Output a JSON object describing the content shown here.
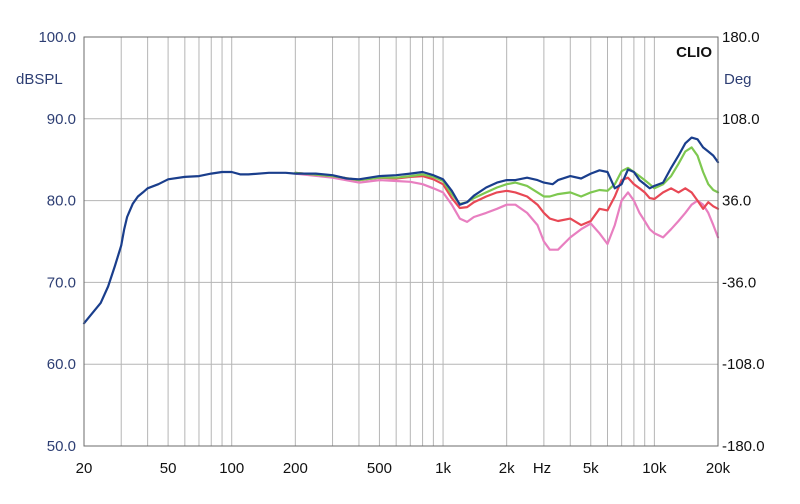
{
  "chart_data": {
    "type": "line",
    "title": "",
    "watermark": "CLIO",
    "x_scale": "log",
    "xlim": [
      20,
      20000
    ],
    "x_ticks": [
      {
        "value": 20,
        "label": "20"
      },
      {
        "value": 50,
        "label": "50"
      },
      {
        "value": 100,
        "label": "100"
      },
      {
        "value": 200,
        "label": "200"
      },
      {
        "value": 500,
        "label": "500"
      },
      {
        "value": 1000,
        "label": "1k"
      },
      {
        "value": 2000,
        "label": "2k"
      },
      {
        "value": 5000,
        "label": "5k"
      },
      {
        "value": 10000,
        "label": "10k"
      },
      {
        "value": 20000,
        "label": "20k"
      }
    ],
    "x_unit_label": "Hz",
    "y_left": {
      "label": "dBSPL",
      "lim": [
        50,
        100
      ],
      "ticks": [
        {
          "value": 100,
          "label": "100.0"
        },
        {
          "value": 90,
          "label": "90.0"
        },
        {
          "value": 80,
          "label": "80.0"
        },
        {
          "value": 70,
          "label": "70.0"
        },
        {
          "value": 60,
          "label": "60.0"
        },
        {
          "value": 50,
          "label": "50.0"
        }
      ]
    },
    "y_right": {
      "label": "Deg",
      "lim": [
        -180,
        180
      ],
      "ticks": [
        {
          "value": 180,
          "label": "180.0"
        },
        {
          "value": 108,
          "label": "108.0"
        },
        {
          "value": 36,
          "label": "36.0"
        },
        {
          "value": -36,
          "label": "-36.0"
        },
        {
          "value": -108,
          "label": "-108.0"
        },
        {
          "value": -180,
          "label": "-180.0"
        }
      ]
    },
    "grid": true,
    "series": [
      {
        "color": "#e87fc0",
        "points": [
          [
            200,
            83.3
          ],
          [
            300,
            82.8
          ],
          [
            400,
            82.2
          ],
          [
            500,
            82.5
          ],
          [
            600,
            82.4
          ],
          [
            700,
            82.3
          ],
          [
            800,
            82.0
          ],
          [
            900,
            81.5
          ],
          [
            1000,
            81.0
          ],
          [
            1100,
            79.5
          ],
          [
            1200,
            77.8
          ],
          [
            1300,
            77.4
          ],
          [
            1400,
            78.0
          ],
          [
            1600,
            78.5
          ],
          [
            1800,
            79.0
          ],
          [
            2000,
            79.5
          ],
          [
            2200,
            79.5
          ],
          [
            2500,
            78.5
          ],
          [
            2800,
            77.0
          ],
          [
            3000,
            75.0
          ],
          [
            3200,
            74.0
          ],
          [
            3500,
            74.0
          ],
          [
            4000,
            75.5
          ],
          [
            4500,
            76.5
          ],
          [
            5000,
            77.2
          ],
          [
            5500,
            76.0
          ],
          [
            6000,
            74.7
          ],
          [
            6500,
            77.0
          ],
          [
            7000,
            80.0
          ],
          [
            7500,
            81.0
          ],
          [
            8000,
            80.0
          ],
          [
            8500,
            78.5
          ],
          [
            9000,
            77.5
          ],
          [
            9500,
            76.5
          ],
          [
            10000,
            76.0
          ],
          [
            11000,
            75.5
          ],
          [
            12000,
            76.5
          ],
          [
            13000,
            77.5
          ],
          [
            14000,
            78.5
          ],
          [
            15000,
            79.5
          ],
          [
            16000,
            80.0
          ],
          [
            17000,
            79.5
          ],
          [
            18000,
            78.5
          ],
          [
            19000,
            77.0
          ],
          [
            20000,
            75.5
          ]
        ]
      },
      {
        "color": "#e84855",
        "points": [
          [
            200,
            83.4
          ],
          [
            300,
            83.0
          ],
          [
            400,
            82.5
          ],
          [
            500,
            82.8
          ],
          [
            600,
            82.7
          ],
          [
            700,
            82.9
          ],
          [
            800,
            83.0
          ],
          [
            900,
            82.6
          ],
          [
            1000,
            82.0
          ],
          [
            1100,
            80.3
          ],
          [
            1200,
            79.1
          ],
          [
            1300,
            79.2
          ],
          [
            1400,
            79.8
          ],
          [
            1600,
            80.5
          ],
          [
            1800,
            81.0
          ],
          [
            2000,
            81.2
          ],
          [
            2200,
            81.0
          ],
          [
            2500,
            80.5
          ],
          [
            2800,
            79.5
          ],
          [
            3000,
            78.5
          ],
          [
            3200,
            77.8
          ],
          [
            3500,
            77.5
          ],
          [
            4000,
            77.8
          ],
          [
            4500,
            77.0
          ],
          [
            5000,
            77.5
          ],
          [
            5500,
            79.0
          ],
          [
            6000,
            78.8
          ],
          [
            6500,
            80.5
          ],
          [
            7000,
            82.5
          ],
          [
            7500,
            82.8
          ],
          [
            8000,
            82.0
          ],
          [
            8500,
            81.5
          ],
          [
            9000,
            81.0
          ],
          [
            9500,
            80.3
          ],
          [
            10000,
            80.2
          ],
          [
            11000,
            81.0
          ],
          [
            12000,
            81.5
          ],
          [
            13000,
            81.0
          ],
          [
            14000,
            81.5
          ],
          [
            15000,
            81.0
          ],
          [
            16000,
            80.0
          ],
          [
            17000,
            79.0
          ],
          [
            18000,
            79.8
          ],
          [
            19000,
            79.3
          ],
          [
            20000,
            79.0
          ]
        ]
      },
      {
        "color": "#7ec850",
        "points": [
          [
            200,
            83.4
          ],
          [
            300,
            83.0
          ],
          [
            400,
            82.5
          ],
          [
            500,
            82.8
          ],
          [
            600,
            82.8
          ],
          [
            700,
            83.0
          ],
          [
            800,
            83.2
          ],
          [
            900,
            82.9
          ],
          [
            1000,
            82.4
          ],
          [
            1100,
            80.8
          ],
          [
            1200,
            79.6
          ],
          [
            1300,
            79.8
          ],
          [
            1400,
            80.3
          ],
          [
            1600,
            81.0
          ],
          [
            1800,
            81.6
          ],
          [
            2000,
            82.0
          ],
          [
            2200,
            82.2
          ],
          [
            2500,
            81.8
          ],
          [
            2800,
            81.0
          ],
          [
            3000,
            80.5
          ],
          [
            3200,
            80.5
          ],
          [
            3500,
            80.8
          ],
          [
            4000,
            81.0
          ],
          [
            4500,
            80.5
          ],
          [
            5000,
            81.0
          ],
          [
            5500,
            81.3
          ],
          [
            6000,
            81.2
          ],
          [
            6500,
            82.0
          ],
          [
            7000,
            83.6
          ],
          [
            7500,
            84.0
          ],
          [
            8000,
            83.5
          ],
          [
            8500,
            83.0
          ],
          [
            9000,
            82.5
          ],
          [
            9500,
            82.0
          ],
          [
            10000,
            81.5
          ],
          [
            11000,
            82.0
          ],
          [
            12000,
            83.0
          ],
          [
            13000,
            84.5
          ],
          [
            14000,
            86.0
          ],
          [
            15000,
            86.5
          ],
          [
            16000,
            85.5
          ],
          [
            17000,
            83.5
          ],
          [
            18000,
            82.0
          ],
          [
            19000,
            81.3
          ],
          [
            20000,
            81.0
          ]
        ]
      },
      {
        "color": "#1a3e8c",
        "points": [
          [
            20,
            65.0
          ],
          [
            22,
            66.3
          ],
          [
            24,
            67.5
          ],
          [
            26,
            69.5
          ],
          [
            28,
            72.0
          ],
          [
            30,
            74.5
          ],
          [
            31,
            76.5
          ],
          [
            32,
            78.0
          ],
          [
            34,
            79.6
          ],
          [
            36,
            80.5
          ],
          [
            38,
            81.0
          ],
          [
            40,
            81.5
          ],
          [
            45,
            82.0
          ],
          [
            50,
            82.6
          ],
          [
            60,
            82.9
          ],
          [
            70,
            83.0
          ],
          [
            80,
            83.3
          ],
          [
            90,
            83.5
          ],
          [
            100,
            83.5
          ],
          [
            110,
            83.2
          ],
          [
            120,
            83.2
          ],
          [
            150,
            83.4
          ],
          [
            180,
            83.4
          ],
          [
            200,
            83.3
          ],
          [
            250,
            83.3
          ],
          [
            300,
            83.1
          ],
          [
            350,
            82.7
          ],
          [
            400,
            82.6
          ],
          [
            500,
            83.0
          ],
          [
            600,
            83.1
          ],
          [
            700,
            83.3
          ],
          [
            800,
            83.5
          ],
          [
            900,
            83.1
          ],
          [
            1000,
            82.6
          ],
          [
            1100,
            81.2
          ],
          [
            1200,
            79.5
          ],
          [
            1300,
            79.8
          ],
          [
            1400,
            80.6
          ],
          [
            1600,
            81.6
          ],
          [
            1800,
            82.2
          ],
          [
            2000,
            82.5
          ],
          [
            2200,
            82.5
          ],
          [
            2500,
            82.8
          ],
          [
            2800,
            82.5
          ],
          [
            3000,
            82.2
          ],
          [
            3300,
            82.0
          ],
          [
            3500,
            82.5
          ],
          [
            4000,
            83.0
          ],
          [
            4500,
            82.7
          ],
          [
            5000,
            83.3
          ],
          [
            5500,
            83.7
          ],
          [
            6000,
            83.5
          ],
          [
            6500,
            81.5
          ],
          [
            7000,
            82.0
          ],
          [
            7500,
            83.8
          ],
          [
            8000,
            83.5
          ],
          [
            8500,
            82.5
          ],
          [
            9000,
            82.0
          ],
          [
            9500,
            81.5
          ],
          [
            10000,
            81.8
          ],
          [
            11000,
            82.2
          ],
          [
            12000,
            84.0
          ],
          [
            13000,
            85.5
          ],
          [
            14000,
            87.0
          ],
          [
            15000,
            87.7
          ],
          [
            16000,
            87.5
          ],
          [
            17000,
            86.5
          ],
          [
            18000,
            86.0
          ],
          [
            19000,
            85.5
          ],
          [
            20000,
            84.7
          ]
        ]
      }
    ]
  }
}
